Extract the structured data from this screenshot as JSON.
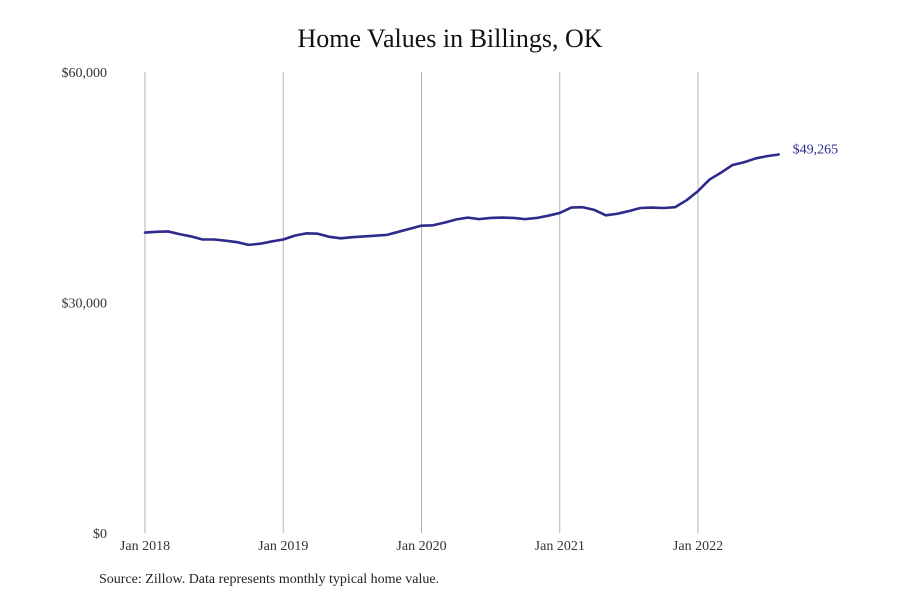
{
  "chart_data": {
    "type": "line",
    "title": "Home Values in Billings, OK",
    "xlabel": "",
    "ylabel": "",
    "x_start": "2018-01",
    "x_ticks": [
      "Jan 2018",
      "Jan 2019",
      "Jan 2020",
      "Jan 2021",
      "Jan 2022"
    ],
    "y_ticks": [
      "$0",
      "$30,000",
      "$60,000"
    ],
    "y_tick_values": [
      0,
      30000,
      60000
    ],
    "ylim": [
      0,
      60000
    ],
    "grid": "vertical",
    "line_color": "#2e2a8c",
    "end_label": "$49,265",
    "series": [
      {
        "values": [
          39100,
          39200,
          39250,
          38900,
          38600,
          38200,
          38200,
          38050,
          37850,
          37500,
          37650,
          37950,
          38200,
          38700,
          39000,
          38950,
          38550,
          38350,
          38500,
          38600,
          38700,
          38800,
          39200,
          39600,
          40000,
          40050,
          40400,
          40800,
          41050,
          40850,
          41000,
          41050,
          41000,
          40850,
          41000,
          41300,
          41650,
          42350,
          42400,
          42050,
          41350,
          41550,
          41900,
          42300,
          42350,
          42300,
          42400,
          43300,
          44500,
          46000,
          46900,
          47900,
          48250,
          48750,
          49050,
          49265
        ]
      }
    ]
  },
  "footer": {
    "source": "Source: Zillow. Data represents monthly typical home value."
  }
}
